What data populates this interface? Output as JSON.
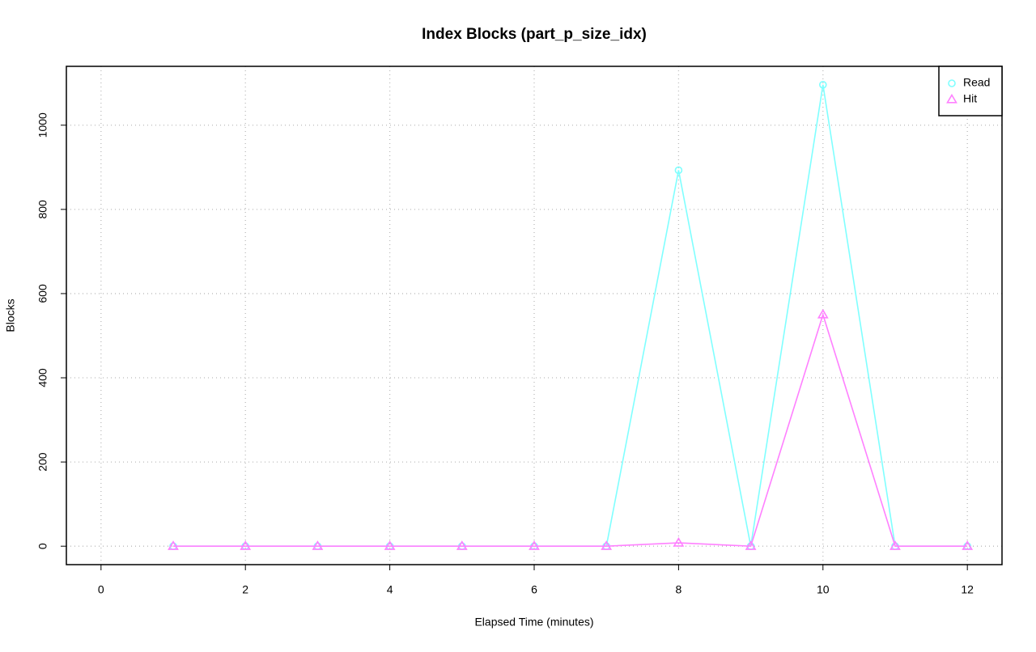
{
  "chart_data": {
    "type": "line",
    "title": "Index Blocks (part_p_size_idx)",
    "x_label": "Elapsed Time (minutes)",
    "y_label": "Blocks",
    "x": [
      1,
      2,
      3,
      4,
      5,
      6,
      7,
      8,
      9,
      10,
      11,
      12
    ],
    "series": [
      {
        "name": "Read",
        "color": "#80ffff",
        "marker": "circle",
        "values": [
          0,
          0,
          0,
          0,
          0,
          0,
          0,
          893,
          0,
          1096,
          0,
          0
        ]
      },
      {
        "name": "Hit",
        "color": "#ff80ff",
        "marker": "triangle",
        "values": [
          0,
          0,
          0,
          0,
          0,
          0,
          0,
          8,
          0,
          550,
          0,
          0
        ]
      }
    ],
    "xlim": [
      -0.48,
      12.48
    ],
    "xticks": [
      0,
      2,
      4,
      6,
      8,
      10,
      12
    ],
    "ylim": [
      -43.8,
      1139.8
    ],
    "yticks": [
      0,
      200,
      400,
      600,
      800,
      1000
    ],
    "grid": true,
    "legend": "topright"
  }
}
